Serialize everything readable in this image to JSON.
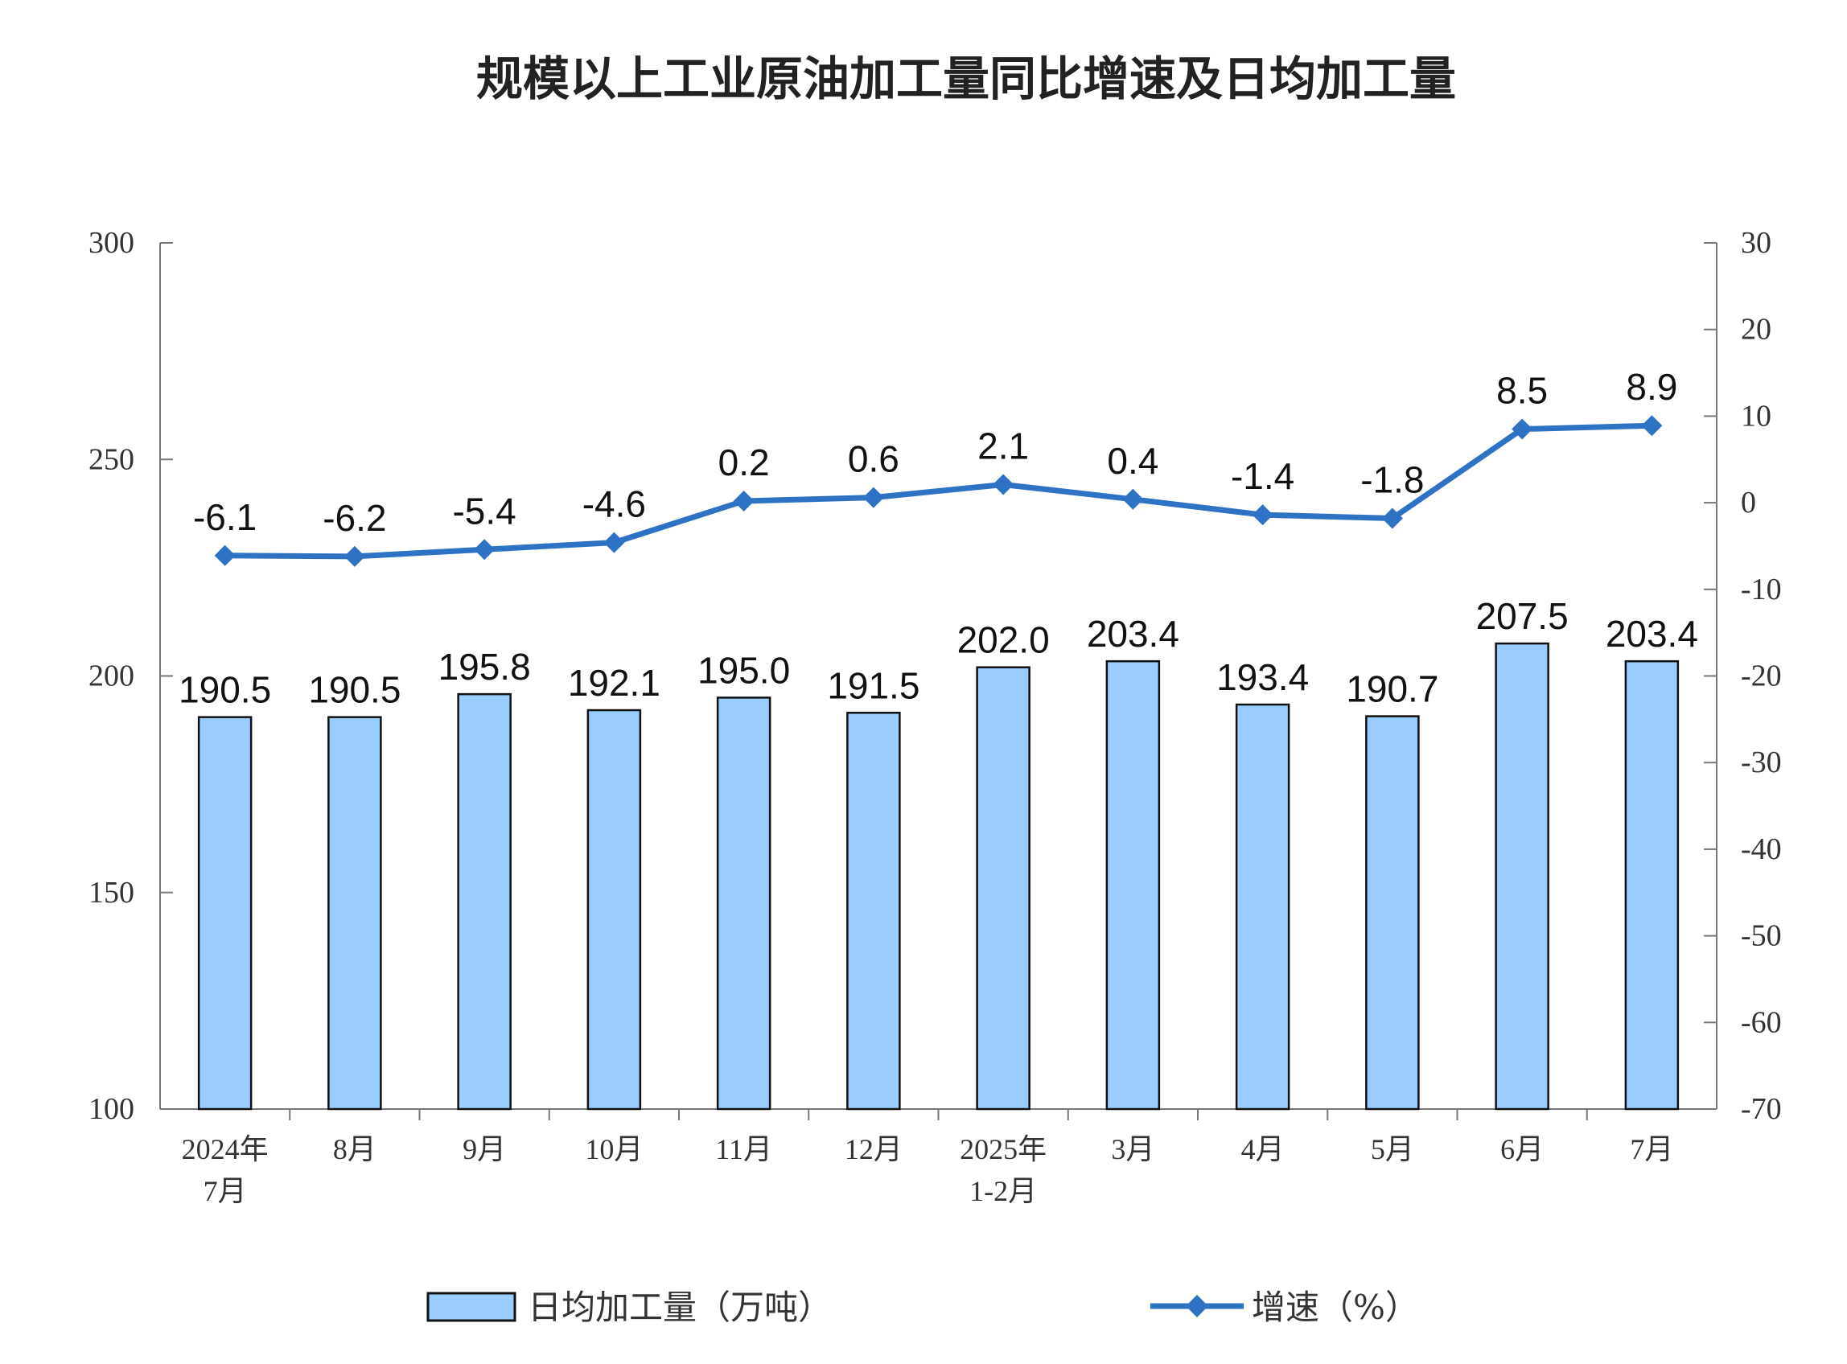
{
  "chart_data": {
    "type": "bar+line",
    "title": "规模以上工业原油加工量同比增速及日均加工量",
    "categories": [
      [
        "2024年",
        "7月"
      ],
      [
        "8月"
      ],
      [
        "9月"
      ],
      [
        "10月"
      ],
      [
        "11月"
      ],
      [
        "12月"
      ],
      [
        "2025年",
        "1-2月"
      ],
      [
        "3月"
      ],
      [
        "4月"
      ],
      [
        "5月"
      ],
      [
        "6月"
      ],
      [
        "7月"
      ]
    ],
    "series": [
      {
        "name": "日均加工量（万吨）",
        "type": "bar",
        "axis": "left",
        "color": "#99ccff",
        "values": [
          190.5,
          190.5,
          195.8,
          192.1,
          195.0,
          191.5,
          202.0,
          203.4,
          193.4,
          190.7,
          207.5,
          203.4
        ],
        "labels": [
          "190.5",
          "190.5",
          "195.8",
          "192.1",
          "195.0",
          "191.5",
          "202.0",
          "203.4",
          "193.4",
          "190.7",
          "207.5",
          "203.4"
        ]
      },
      {
        "name": "增速（%）",
        "type": "line",
        "axis": "right",
        "color": "#2e72c4",
        "values": [
          -6.1,
          -6.2,
          -5.4,
          -4.6,
          0.2,
          0.6,
          2.1,
          0.4,
          -1.4,
          -1.8,
          8.5,
          8.9
        ],
        "labels": [
          "-6.1",
          "-6.2",
          "-5.4",
          "-4.6",
          "0.2",
          "0.6",
          "2.1",
          "0.4",
          "-1.4",
          "-1.8",
          "8.5",
          "8.9"
        ]
      }
    ],
    "left_axis": {
      "ylim": [
        100,
        300
      ],
      "ticks": [
        "100",
        "150",
        "200",
        "250",
        "300"
      ]
    },
    "right_axis": {
      "ylim": [
        -70,
        30
      ],
      "ticks": [
        "-70",
        "-60",
        "-50",
        "-40",
        "-30",
        "-20",
        "-10",
        "0",
        "10",
        "20",
        "30"
      ]
    },
    "grid": false,
    "legend": "bottom"
  }
}
